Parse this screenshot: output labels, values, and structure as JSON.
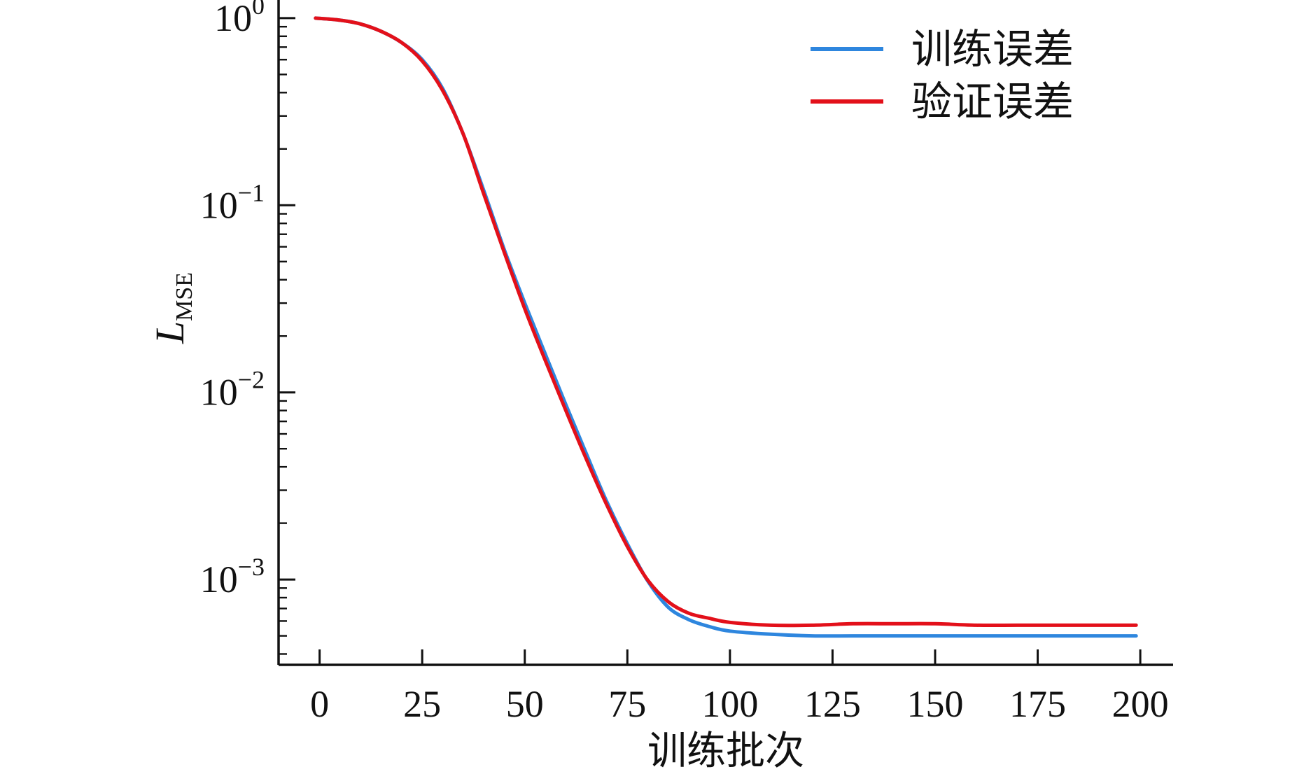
{
  "chart_data": {
    "type": "line",
    "title": "",
    "xlabel": "训练批次",
    "ylabel": {
      "main": "L",
      "subscript": "MSE"
    },
    "xlim": [
      -10,
      208
    ],
    "ylim": [
      0.00035,
      1.25
    ],
    "yscale": "log",
    "grid": false,
    "legend_position": "top-right",
    "x_ticks": [
      0,
      25,
      50,
      75,
      100,
      125,
      150,
      175,
      200
    ],
    "x_tick_labels": [
      "0",
      "25",
      "50",
      "75",
      "100",
      "125",
      "150",
      "175",
      "200"
    ],
    "y_ticks": [
      {
        "value": 1,
        "base": "10",
        "exp": "0"
      },
      {
        "value": 0.1,
        "base": "10",
        "exp": "−1"
      },
      {
        "value": 0.01,
        "base": "10",
        "exp": "−2"
      },
      {
        "value": 0.001,
        "base": "10",
        "exp": "−3"
      }
    ],
    "series": [
      {
        "name": "训练误差",
        "color": "#2E86DE",
        "x": [
          -1,
          5,
          10,
          15,
          20,
          25,
          30,
          35,
          40,
          45,
          50,
          55,
          60,
          65,
          70,
          75,
          80,
          85,
          90,
          95,
          100,
          110,
          120,
          130,
          140,
          150,
          160,
          170,
          180,
          190,
          199
        ],
        "y": [
          1.0,
          0.975,
          0.93,
          0.85,
          0.74,
          0.6,
          0.42,
          0.24,
          0.12,
          0.058,
          0.03,
          0.016,
          0.0086,
          0.0047,
          0.0026,
          0.00155,
          0.00098,
          0.00071,
          0.00061,
          0.00056,
          0.00053,
          0.00051,
          0.0005,
          0.0005,
          0.0005,
          0.0005,
          0.0005,
          0.0005,
          0.0005,
          0.0005,
          0.0005
        ]
      },
      {
        "name": "验证误差",
        "color": "#E3101A",
        "x": [
          -1,
          5,
          10,
          15,
          20,
          25,
          30,
          35,
          40,
          45,
          50,
          55,
          60,
          65,
          70,
          75,
          80,
          85,
          90,
          95,
          100,
          110,
          120,
          130,
          140,
          150,
          160,
          170,
          180,
          190,
          199
        ],
        "y": [
          1.0,
          0.975,
          0.93,
          0.85,
          0.74,
          0.59,
          0.41,
          0.24,
          0.115,
          0.056,
          0.028,
          0.0148,
          0.008,
          0.0044,
          0.0025,
          0.0015,
          0.00099,
          0.00076,
          0.00066,
          0.00062,
          0.00059,
          0.00057,
          0.00057,
          0.00058,
          0.00058,
          0.00058,
          0.00057,
          0.00057,
          0.00057,
          0.00057,
          0.00057
        ]
      }
    ]
  }
}
